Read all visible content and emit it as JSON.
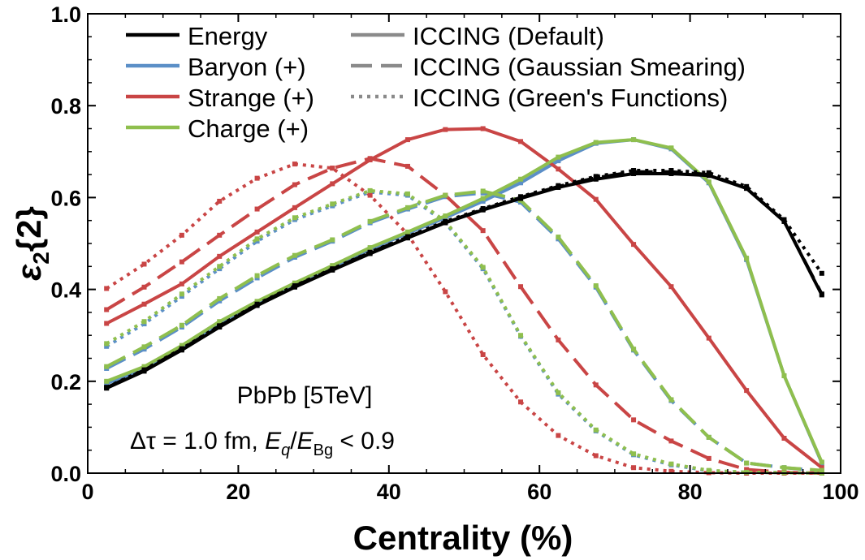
{
  "chart_data": {
    "type": "line",
    "xlabel": "Centrality (%)",
    "ylabel_main": "ε",
    "ylabel_sub": "2",
    "ylabel_rest": "{2}",
    "xlim": [
      0,
      100
    ],
    "ylim": [
      0,
      1.0
    ],
    "xticks": [
      0,
      20,
      40,
      60,
      80,
      100
    ],
    "yticks": [
      "0.0",
      "0.2",
      "0.4",
      "0.6",
      "0.8",
      "1.0"
    ],
    "x": [
      2.5,
      7.5,
      12.5,
      17.5,
      22.5,
      27.5,
      32.5,
      37.5,
      42.5,
      47.5,
      52.5,
      57.5,
      62.5,
      67.5,
      72.5,
      77.5,
      82.5,
      87.5,
      92.5,
      97.5
    ],
    "colors": {
      "energy": "#000000",
      "baryon": "#5b8fc7",
      "strange": "#c94545",
      "charge": "#8fbf4e"
    },
    "legend_columns": [
      [
        "Energy",
        "Baryon (+)",
        "Strange (+)",
        "Charge (+)"
      ],
      [
        "ICCING (Default)",
        "ICCING (Gaussian Smearing)",
        "ICCING (Green's Functions)"
      ]
    ],
    "annotations": {
      "line1": "PbPb [5TeV]",
      "line2_prefix": "Δτ = 1.0 fm, ",
      "line2_eq": "E",
      "line2_q": "q",
      "line2_slash": "/",
      "line2_eb": "E",
      "line2_bg": "Bg",
      "line2_suffix": " < 0.9"
    },
    "series": [
      {
        "name": "Energy",
        "color": "energy",
        "style": "solid",
        "values": [
          0.185,
          0.222,
          0.268,
          0.318,
          0.365,
          0.405,
          0.442,
          0.478,
          0.512,
          0.545,
          0.573,
          0.598,
          0.622,
          0.64,
          0.652,
          0.652,
          0.648,
          0.62,
          0.548,
          0.388
        ]
      },
      {
        "name": "Energy",
        "color": "energy",
        "style": "dashed",
        "values": [
          0.186,
          0.224,
          0.27,
          0.32,
          0.367,
          0.407,
          0.444,
          0.48,
          0.514,
          0.546,
          0.574,
          0.6,
          0.624,
          0.643,
          0.656,
          0.656,
          0.65,
          0.62,
          0.548,
          0.39
        ]
      },
      {
        "name": "Energy",
        "color": "energy",
        "style": "dotted",
        "values": [
          0.187,
          0.225,
          0.271,
          0.321,
          0.368,
          0.408,
          0.445,
          0.481,
          0.515,
          0.548,
          0.576,
          0.602,
          0.626,
          0.646,
          0.659,
          0.659,
          0.654,
          0.624,
          0.552,
          0.435
        ]
      },
      {
        "name": "Baryon (+)",
        "color": "baryon",
        "style": "solid",
        "values": [
          0.195,
          0.228,
          0.274,
          0.326,
          0.37,
          0.41,
          0.448,
          0.488,
          0.522,
          0.556,
          0.592,
          0.632,
          0.68,
          0.718,
          0.726,
          0.706,
          0.632,
          0.465,
          0.212,
          0.022
        ]
      },
      {
        "name": "Baryon (+)",
        "color": "baryon",
        "style": "dashed",
        "values": [
          0.228,
          0.27,
          0.318,
          0.375,
          0.425,
          0.47,
          0.505,
          0.545,
          0.575,
          0.602,
          0.61,
          0.59,
          0.51,
          0.405,
          0.268,
          0.158,
          0.078,
          0.022,
          0.012,
          0.005
        ]
      },
      {
        "name": "Baryon (+)",
        "color": "baryon",
        "style": "dotted",
        "values": [
          0.276,
          0.325,
          0.385,
          0.445,
          0.505,
          0.552,
          0.582,
          0.612,
          0.605,
          0.545,
          0.445,
          0.298,
          0.172,
          0.092,
          0.04,
          0.018,
          0.005,
          0.002,
          0.001,
          0.0
        ]
      },
      {
        "name": "Strange (+)",
        "color": "strange",
        "style": "solid",
        "values": [
          0.326,
          0.368,
          0.412,
          0.472,
          0.525,
          0.578,
          0.63,
          0.682,
          0.726,
          0.748,
          0.75,
          0.722,
          0.662,
          0.596,
          0.498,
          0.406,
          0.294,
          0.18,
          0.076,
          0.012
        ]
      },
      {
        "name": "Strange (+)",
        "color": "strange",
        "style": "dashed",
        "values": [
          0.356,
          0.405,
          0.46,
          0.518,
          0.575,
          0.628,
          0.664,
          0.685,
          0.668,
          0.605,
          0.528,
          0.406,
          0.29,
          0.192,
          0.116,
          0.07,
          0.032,
          0.008,
          0.002,
          0.0
        ]
      },
      {
        "name": "Strange (+)",
        "color": "strange",
        "style": "dotted",
        "values": [
          0.402,
          0.455,
          0.518,
          0.592,
          0.642,
          0.673,
          0.664,
          0.605,
          0.52,
          0.395,
          0.258,
          0.155,
          0.082,
          0.038,
          0.012,
          0.004,
          0.001,
          0.0,
          0.0,
          0.0
        ]
      },
      {
        "name": "Charge (+)",
        "color": "charge",
        "style": "solid",
        "values": [
          0.2,
          0.232,
          0.278,
          0.33,
          0.374,
          0.414,
          0.452,
          0.491,
          0.525,
          0.56,
          0.598,
          0.64,
          0.688,
          0.72,
          0.726,
          0.708,
          0.634,
          0.468,
          0.212,
          0.024
        ]
      },
      {
        "name": "Charge (+)",
        "color": "charge",
        "style": "dashed",
        "values": [
          0.232,
          0.275,
          0.322,
          0.38,
          0.43,
          0.474,
          0.508,
          0.548,
          0.578,
          0.605,
          0.614,
          0.594,
          0.514,
          0.408,
          0.27,
          0.16,
          0.078,
          0.022,
          0.012,
          0.006
        ]
      },
      {
        "name": "Charge (+)",
        "color": "charge",
        "style": "dotted",
        "values": [
          0.282,
          0.33,
          0.39,
          0.45,
          0.51,
          0.556,
          0.586,
          0.615,
          0.608,
          0.548,
          0.448,
          0.3,
          0.175,
          0.094,
          0.042,
          0.02,
          0.006,
          0.002,
          0.001,
          0.0
        ]
      }
    ]
  }
}
